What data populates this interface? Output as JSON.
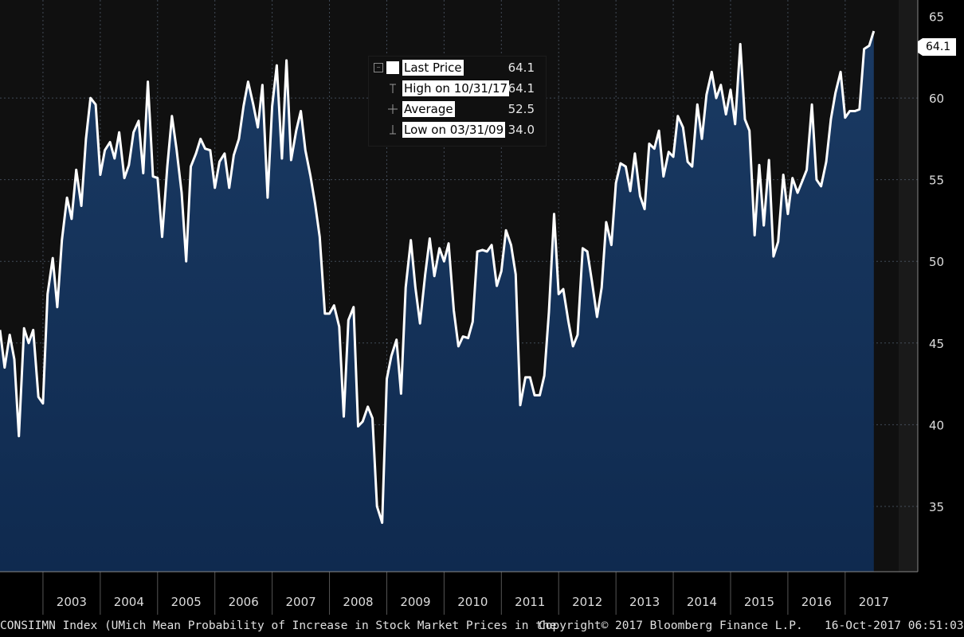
{
  "chart_data": {
    "type": "area",
    "title": "",
    "xlabel": "",
    "ylabel": "",
    "ylim": [
      31,
      66
    ],
    "yticks": [
      35,
      40,
      45,
      50,
      55,
      60
    ],
    "y_top_tick": "65",
    "years": [
      "2003",
      "2004",
      "2005",
      "2006",
      "2007",
      "2008",
      "2009",
      "2010",
      "2011",
      "2012",
      "2013",
      "2014",
      "2015",
      "2016",
      "2017"
    ],
    "x_start": 2002.25,
    "x_end": 2017.92,
    "grid": true,
    "line_color": "#ffffff",
    "fill_top_color": "#1a3a63",
    "fill_bottom_color": "#0f2a4f",
    "background_color": "#101010",
    "series": [
      {
        "points": [
          [
            2002.25,
            45.8
          ],
          [
            2002.33,
            43.5
          ],
          [
            2002.42,
            45.5
          ],
          [
            2002.5,
            44.0
          ],
          [
            2002.58,
            39.3
          ],
          [
            2002.67,
            45.9
          ],
          [
            2002.75,
            45.0
          ],
          [
            2002.83,
            45.8
          ],
          [
            2002.92,
            41.7
          ],
          [
            2003.0,
            41.3
          ],
          [
            2003.08,
            48.0
          ],
          [
            2003.17,
            50.2
          ],
          [
            2003.25,
            47.2
          ],
          [
            2003.33,
            51.3
          ],
          [
            2003.42,
            53.9
          ],
          [
            2003.5,
            52.6
          ],
          [
            2003.58,
            55.6
          ],
          [
            2003.67,
            53.4
          ],
          [
            2003.75,
            57.5
          ],
          [
            2003.83,
            60.0
          ],
          [
            2003.92,
            59.6
          ],
          [
            2004.0,
            55.3
          ],
          [
            2004.08,
            56.8
          ],
          [
            2004.17,
            57.3
          ],
          [
            2004.25,
            56.3
          ],
          [
            2004.33,
            57.9
          ],
          [
            2004.42,
            55.1
          ],
          [
            2004.5,
            55.9
          ],
          [
            2004.58,
            57.9
          ],
          [
            2004.67,
            58.6
          ],
          [
            2004.75,
            55.4
          ],
          [
            2004.83,
            61.0
          ],
          [
            2004.92,
            55.2
          ],
          [
            2005.0,
            55.1
          ],
          [
            2005.08,
            51.5
          ],
          [
            2005.17,
            55.8
          ],
          [
            2005.25,
            58.9
          ],
          [
            2005.33,
            56.9
          ],
          [
            2005.42,
            54.2
          ],
          [
            2005.5,
            50.0
          ],
          [
            2005.58,
            55.8
          ],
          [
            2005.67,
            56.6
          ],
          [
            2005.75,
            57.5
          ],
          [
            2005.83,
            56.9
          ],
          [
            2005.92,
            56.8
          ],
          [
            2006.0,
            54.5
          ],
          [
            2006.08,
            56.1
          ],
          [
            2006.17,
            56.6
          ],
          [
            2006.25,
            54.5
          ],
          [
            2006.33,
            56.5
          ],
          [
            2006.42,
            57.5
          ],
          [
            2006.5,
            59.5
          ],
          [
            2006.58,
            61.0
          ],
          [
            2006.67,
            59.6
          ],
          [
            2006.75,
            58.2
          ],
          [
            2006.83,
            60.8
          ],
          [
            2006.92,
            53.9
          ],
          [
            2007.0,
            59.5
          ],
          [
            2007.08,
            62.0
          ],
          [
            2007.17,
            56.3
          ],
          [
            2007.25,
            62.3
          ],
          [
            2007.33,
            56.2
          ],
          [
            2007.42,
            58.0
          ],
          [
            2007.5,
            59.2
          ],
          [
            2007.58,
            56.8
          ],
          [
            2007.67,
            55.2
          ],
          [
            2007.75,
            53.5
          ],
          [
            2007.83,
            51.5
          ],
          [
            2007.92,
            46.8
          ],
          [
            2008.0,
            46.8
          ],
          [
            2008.08,
            47.3
          ],
          [
            2008.17,
            46.0
          ],
          [
            2008.25,
            40.5
          ],
          [
            2008.33,
            46.4
          ],
          [
            2008.42,
            47.2
          ],
          [
            2008.5,
            39.9
          ],
          [
            2008.58,
            40.2
          ],
          [
            2008.67,
            41.1
          ],
          [
            2008.75,
            40.4
          ],
          [
            2008.83,
            35.0
          ],
          [
            2008.92,
            34.0
          ],
          [
            2009.0,
            42.8
          ],
          [
            2009.08,
            44.2
          ],
          [
            2009.17,
            45.2
          ],
          [
            2009.25,
            41.9
          ],
          [
            2009.33,
            48.4
          ],
          [
            2009.42,
            51.3
          ],
          [
            2009.5,
            48.4
          ],
          [
            2009.58,
            46.2
          ],
          [
            2009.67,
            49.2
          ],
          [
            2009.75,
            51.4
          ],
          [
            2009.83,
            49.1
          ],
          [
            2009.92,
            50.8
          ],
          [
            2010.0,
            50.0
          ],
          [
            2010.08,
            51.1
          ],
          [
            2010.17,
            47.0
          ],
          [
            2010.25,
            44.8
          ],
          [
            2010.33,
            45.4
          ],
          [
            2010.42,
            45.3
          ],
          [
            2010.5,
            46.3
          ],
          [
            2010.58,
            50.6
          ],
          [
            2010.67,
            50.7
          ],
          [
            2010.75,
            50.6
          ],
          [
            2010.83,
            51.0
          ],
          [
            2010.92,
            48.5
          ],
          [
            2011.0,
            49.4
          ],
          [
            2011.08,
            51.9
          ],
          [
            2011.17,
            51.0
          ],
          [
            2011.25,
            49.2
          ],
          [
            2011.33,
            41.2
          ],
          [
            2011.42,
            42.9
          ],
          [
            2011.5,
            42.9
          ],
          [
            2011.58,
            41.8
          ],
          [
            2011.67,
            41.8
          ],
          [
            2011.75,
            43.0
          ],
          [
            2011.83,
            46.9
          ],
          [
            2011.92,
            52.9
          ],
          [
            2012.0,
            48.0
          ],
          [
            2012.08,
            48.3
          ],
          [
            2012.17,
            46.3
          ],
          [
            2012.25,
            44.8
          ],
          [
            2012.33,
            45.5
          ],
          [
            2012.42,
            50.8
          ],
          [
            2012.5,
            50.6
          ],
          [
            2012.58,
            48.8
          ],
          [
            2012.67,
            46.6
          ],
          [
            2012.75,
            48.4
          ],
          [
            2012.83,
            52.4
          ],
          [
            2012.92,
            51.0
          ],
          [
            2013.0,
            54.8
          ],
          [
            2013.08,
            56.0
          ],
          [
            2013.17,
            55.8
          ],
          [
            2013.25,
            54.3
          ],
          [
            2013.33,
            56.6
          ],
          [
            2013.42,
            54.0
          ],
          [
            2013.5,
            53.2
          ],
          [
            2013.58,
            57.2
          ],
          [
            2013.67,
            56.9
          ],
          [
            2013.75,
            58.0
          ],
          [
            2013.83,
            55.2
          ],
          [
            2013.92,
            56.7
          ],
          [
            2014.0,
            56.4
          ],
          [
            2014.08,
            58.9
          ],
          [
            2014.17,
            58.2
          ],
          [
            2014.25,
            56.1
          ],
          [
            2014.33,
            55.8
          ],
          [
            2014.42,
            59.6
          ],
          [
            2014.5,
            57.5
          ],
          [
            2014.58,
            60.2
          ],
          [
            2014.67,
            61.6
          ],
          [
            2014.75,
            60.0
          ],
          [
            2014.83,
            60.8
          ],
          [
            2014.92,
            59.0
          ],
          [
            2015.0,
            60.5
          ],
          [
            2015.08,
            58.4
          ],
          [
            2015.17,
            63.3
          ],
          [
            2015.25,
            58.7
          ],
          [
            2015.33,
            58.0
          ],
          [
            2015.42,
            51.6
          ],
          [
            2015.5,
            55.9
          ],
          [
            2015.58,
            52.2
          ],
          [
            2015.67,
            56.2
          ],
          [
            2015.75,
            50.3
          ],
          [
            2015.83,
            51.2
          ],
          [
            2015.92,
            55.3
          ],
          [
            2016.0,
            52.9
          ],
          [
            2016.08,
            55.1
          ],
          [
            2016.17,
            54.2
          ],
          [
            2016.25,
            54.9
          ],
          [
            2016.33,
            55.6
          ],
          [
            2016.42,
            59.6
          ],
          [
            2016.5,
            55.0
          ],
          [
            2016.58,
            54.6
          ],
          [
            2016.67,
            56.1
          ],
          [
            2016.75,
            58.7
          ],
          [
            2016.83,
            60.3
          ],
          [
            2016.92,
            61.6
          ],
          [
            2017.0,
            58.8
          ],
          [
            2017.08,
            59.2
          ],
          [
            2017.17,
            59.2
          ],
          [
            2017.25,
            59.3
          ],
          [
            2017.33,
            63.0
          ],
          [
            2017.42,
            63.2
          ],
          [
            2017.5,
            64.1
          ]
        ]
      }
    ],
    "last_value_label": "64.1",
    "legend": [
      {
        "label": "Last Price",
        "value": "64.1"
      },
      {
        "label": "High on 10/31/17",
        "value": "64.1"
      },
      {
        "label": "Average",
        "value": "52.5"
      },
      {
        "label": "Low on 03/31/09",
        "value": "34.0"
      }
    ]
  },
  "footer": {
    "description": "CONSIIMN Index (UMich Mean Probability of Increase in Stock Market Prices in the",
    "copyright": "Copyright© 2017 Bloomberg Finance L.P.",
    "timestamp": "16-Oct-2017 06:51:03"
  }
}
